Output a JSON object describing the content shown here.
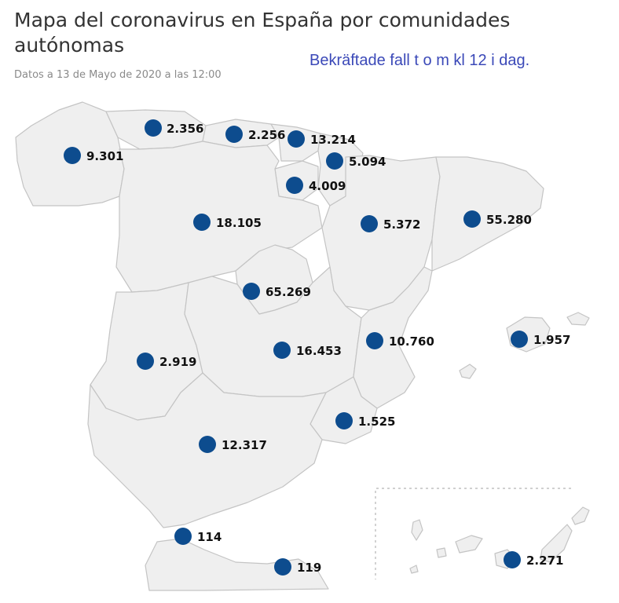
{
  "header": {
    "title": "Mapa del coronavirus en España por comunidades autónomas",
    "subtitle": "Datos a 13 de Mayo de 2020 a las 12:00",
    "annotation": "Bekräftade fall t o m kl 12 i dag."
  },
  "colors": {
    "marker": "#0d4c8e",
    "region_fill": "#efefef",
    "region_stroke": "#c4c4c4"
  },
  "markers": [
    {
      "value": "9.301"
    },
    {
      "value": "2.356"
    },
    {
      "value": "2.256"
    },
    {
      "value": "13.214"
    },
    {
      "value": "5.094"
    },
    {
      "value": "4.009"
    },
    {
      "value": "18.105"
    },
    {
      "value": "5.372"
    },
    {
      "value": "55.280"
    },
    {
      "value": "65.269"
    },
    {
      "value": "1.957"
    },
    {
      "value": "10.760"
    },
    {
      "value": "2.919"
    },
    {
      "value": "16.453"
    },
    {
      "value": "1.525"
    },
    {
      "value": "12.317"
    },
    {
      "value": "114"
    },
    {
      "value": "119"
    },
    {
      "value": "2.271"
    }
  ]
}
